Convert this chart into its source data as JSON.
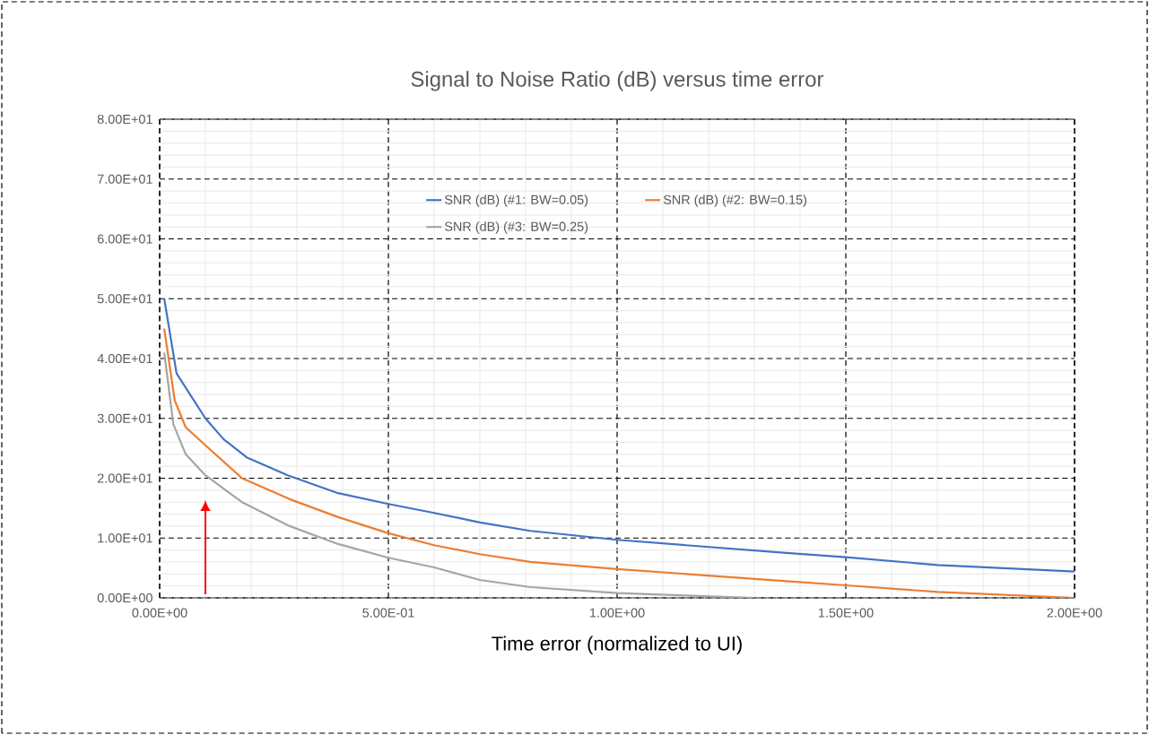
{
  "chart_data": {
    "type": "line",
    "title": "Signal to Noise Ratio (dB) versus time error",
    "xlabel": "Time error (normalized to UI)",
    "xlim": [
      0,
      2
    ],
    "ylim": [
      0,
      80
    ],
    "xticks": [
      {
        "value": 0,
        "label": "0.00E+00"
      },
      {
        "value": 0.5,
        "label": "5.00E-01"
      },
      {
        "value": 1,
        "label": "1.00E+00"
      },
      {
        "value": 1.5,
        "label": "1.50E+00"
      },
      {
        "value": 2,
        "label": "2.00E+00"
      }
    ],
    "yticks": [
      {
        "value": 0,
        "label": "0.00E+00"
      },
      {
        "value": 10,
        "label": "1.00E+01"
      },
      {
        "value": 20,
        "label": "2.00E+01"
      },
      {
        "value": 30,
        "label": "3.00E+01"
      },
      {
        "value": 40,
        "label": "4.00E+01"
      },
      {
        "value": 50,
        "label": "5.00E+01"
      },
      {
        "value": 60,
        "label": "6.00E+01"
      },
      {
        "value": 70,
        "label": "7.00E+01"
      },
      {
        "value": 80,
        "label": "8.00E+01"
      }
    ],
    "grid": true,
    "legend": "top",
    "series": [
      {
        "name": "SNR (dB) (#1: BW=0.05)",
        "color": "#4472c4",
        "x": [
          0.01,
          0.037,
          0.1,
          0.14,
          0.19,
          0.28,
          0.39,
          0.5,
          0.6,
          0.7,
          0.81,
          1.0,
          1.15,
          1.37,
          1.5,
          1.7,
          2.0
        ],
        "values": [
          50,
          37.5,
          30,
          26.5,
          23.5,
          20.5,
          17.5,
          15.7,
          14.2,
          12.6,
          11.2,
          9.7,
          8.8,
          7.5,
          6.8,
          5.5,
          4.4
        ]
      },
      {
        "name": "SNR (dB) (#2: BW=0.15)",
        "color": "#ed7d31",
        "x": [
          0.01,
          0.033,
          0.057,
          0.1,
          0.18,
          0.284,
          0.39,
          0.5,
          0.6,
          0.7,
          0.81,
          1.0,
          1.15,
          1.37,
          1.5,
          1.7,
          2.0
        ],
        "values": [
          45,
          33,
          28.5,
          25.5,
          20,
          16.5,
          13.5,
          10.8,
          8.8,
          7.3,
          6.0,
          4.8,
          4.0,
          2.8,
          2.1,
          1.0,
          0
        ]
      },
      {
        "name": "SNR (dB) (#3: BW=0.25)",
        "color": "#a5a5a5",
        "x": [
          0.01,
          0.03,
          0.057,
          0.1,
          0.18,
          0.284,
          0.39,
          0.5,
          0.6,
          0.7,
          0.81,
          1.0,
          1.15,
          1.3
        ],
        "values": [
          41,
          29,
          24,
          20.5,
          16,
          12,
          9.0,
          6.7,
          5.1,
          3.0,
          1.8,
          0.8,
          0.4,
          0
        ]
      }
    ]
  }
}
